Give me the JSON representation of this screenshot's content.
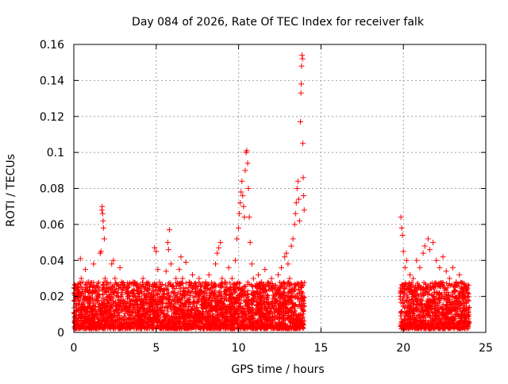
{
  "chart_data": {
    "type": "scatter",
    "title": "Day 084 of 2026, Rate Of TEC Index for receiver falk",
    "xlabel": "GPS time / hours",
    "ylabel": "ROTI / TECUs",
    "xlim": [
      0,
      25
    ],
    "ylim": [
      0,
      0.16
    ],
    "x_ticks": [
      0,
      5,
      10,
      15,
      20,
      25
    ],
    "x_tick_labels": [
      "0",
      "5",
      "10",
      "15",
      "20",
      "25"
    ],
    "y_ticks": [
      0,
      0.02,
      0.04,
      0.06,
      0.08,
      0.1,
      0.12,
      0.14,
      0.16
    ],
    "y_tick_labels": [
      "0",
      "0.02",
      "0.04",
      "0.06",
      "0.08",
      "0.1",
      "0.12",
      "0.14",
      "0.16"
    ],
    "grid": true,
    "marker": "+",
    "color": "#ff0000",
    "data_gap_hours": [
      14.0,
      19.8
    ],
    "points": [
      [
        0.05,
        0.008
      ],
      [
        0.1,
        0.015
      ],
      [
        0.15,
        0.012
      ],
      [
        0.2,
        0.025
      ],
      [
        0.25,
        0.018
      ],
      [
        0.3,
        0.01
      ],
      [
        0.35,
        0.022
      ],
      [
        0.4,
        0.041
      ],
      [
        0.45,
        0.03
      ],
      [
        0.5,
        0.014
      ],
      [
        0.6,
        0.02
      ],
      [
        0.7,
        0.035
      ],
      [
        0.8,
        0.012
      ],
      [
        0.9,
        0.028
      ],
      [
        1.0,
        0.016
      ],
      [
        1.1,
        0.022
      ],
      [
        1.2,
        0.038
      ],
      [
        1.3,
        0.018
      ],
      [
        1.4,
        0.026
      ],
      [
        1.5,
        0.014
      ],
      [
        1.6,
        0.044
      ],
      [
        1.65,
        0.045
      ],
      [
        1.7,
        0.068
      ],
      [
        1.72,
        0.07
      ],
      [
        1.75,
        0.066
      ],
      [
        1.78,
        0.062
      ],
      [
        1.8,
        0.058
      ],
      [
        1.85,
        0.052
      ],
      [
        1.9,
        0.03
      ],
      [
        2.0,
        0.018
      ],
      [
        2.1,
        0.024
      ],
      [
        2.2,
        0.02
      ],
      [
        2.3,
        0.038
      ],
      [
        2.4,
        0.04
      ],
      [
        2.5,
        0.03
      ],
      [
        2.6,
        0.015
      ],
      [
        2.7,
        0.022
      ],
      [
        2.8,
        0.036
      ],
      [
        2.9,
        0.028
      ],
      [
        3.0,
        0.018
      ],
      [
        3.2,
        0.025
      ],
      [
        3.4,
        0.02
      ],
      [
        3.6,
        0.028
      ],
      [
        3.8,
        0.018
      ],
      [
        4.0,
        0.022
      ],
      [
        4.2,
        0.03
      ],
      [
        4.4,
        0.02
      ],
      [
        4.6,
        0.026
      ],
      [
        4.8,
        0.018
      ],
      [
        4.9,
        0.047
      ],
      [
        5.0,
        0.045
      ],
      [
        5.1,
        0.035
      ],
      [
        5.2,
        0.028
      ],
      [
        5.4,
        0.02
      ],
      [
        5.6,
        0.034
      ],
      [
        5.7,
        0.05
      ],
      [
        5.75,
        0.046
      ],
      [
        5.8,
        0.057
      ],
      [
        5.9,
        0.038
      ],
      [
        6.0,
        0.026
      ],
      [
        6.2,
        0.03
      ],
      [
        6.4,
        0.035
      ],
      [
        6.5,
        0.042
      ],
      [
        6.6,
        0.03
      ],
      [
        6.8,
        0.039
      ],
      [
        7.0,
        0.028
      ],
      [
        7.2,
        0.032
      ],
      [
        7.4,
        0.024
      ],
      [
        7.6,
        0.03
      ],
      [
        7.8,
        0.022
      ],
      [
        8.0,
        0.028
      ],
      [
        8.2,
        0.032
      ],
      [
        8.4,
        0.025
      ],
      [
        8.6,
        0.038
      ],
      [
        8.7,
        0.044
      ],
      [
        8.8,
        0.047
      ],
      [
        8.9,
        0.05
      ],
      [
        9.0,
        0.03
      ],
      [
        9.2,
        0.028
      ],
      [
        9.4,
        0.036
      ],
      [
        9.6,
        0.03
      ],
      [
        9.8,
        0.04
      ],
      [
        9.9,
        0.052
      ],
      [
        10.0,
        0.058
      ],
      [
        10.05,
        0.066
      ],
      [
        10.1,
        0.072
      ],
      [
        10.15,
        0.078
      ],
      [
        10.2,
        0.084
      ],
      [
        10.25,
        0.076
      ],
      [
        10.3,
        0.07
      ],
      [
        10.35,
        0.064
      ],
      [
        10.4,
        0.09
      ],
      [
        10.45,
        0.1
      ],
      [
        10.5,
        0.101
      ],
      [
        10.55,
        0.094
      ],
      [
        10.6,
        0.08
      ],
      [
        10.65,
        0.064
      ],
      [
        10.7,
        0.05
      ],
      [
        10.8,
        0.038
      ],
      [
        10.9,
        0.03
      ],
      [
        11.0,
        0.026
      ],
      [
        11.2,
        0.032
      ],
      [
        11.4,
        0.028
      ],
      [
        11.6,
        0.035
      ],
      [
        11.8,
        0.026
      ],
      [
        12.0,
        0.03
      ],
      [
        12.2,
        0.024
      ],
      [
        12.4,
        0.032
      ],
      [
        12.6,
        0.036
      ],
      [
        12.8,
        0.042
      ],
      [
        12.9,
        0.044
      ],
      [
        13.0,
        0.038
      ],
      [
        13.1,
        0.03
      ],
      [
        13.2,
        0.048
      ],
      [
        13.3,
        0.052
      ],
      [
        13.4,
        0.06
      ],
      [
        13.45,
        0.066
      ],
      [
        13.5,
        0.072
      ],
      [
        13.55,
        0.08
      ],
      [
        13.6,
        0.084
      ],
      [
        13.65,
        0.074
      ],
      [
        13.7,
        0.062
      ],
      [
        13.75,
        0.117
      ],
      [
        13.78,
        0.133
      ],
      [
        13.8,
        0.138
      ],
      [
        13.82,
        0.148
      ],
      [
        13.85,
        0.154
      ],
      [
        13.88,
        0.152
      ],
      [
        13.9,
        0.105
      ],
      [
        13.92,
        0.086
      ],
      [
        13.95,
        0.076
      ],
      [
        13.98,
        0.068
      ],
      [
        19.85,
        0.064
      ],
      [
        19.9,
        0.058
      ],
      [
        19.95,
        0.054
      ],
      [
        20.0,
        0.045
      ],
      [
        20.1,
        0.036
      ],
      [
        20.2,
        0.04
      ],
      [
        20.4,
        0.032
      ],
      [
        20.6,
        0.03
      ],
      [
        20.8,
        0.04
      ],
      [
        21.0,
        0.036
      ],
      [
        21.2,
        0.044
      ],
      [
        21.3,
        0.048
      ],
      [
        21.5,
        0.052
      ],
      [
        21.6,
        0.046
      ],
      [
        21.8,
        0.05
      ],
      [
        22.0,
        0.04
      ],
      [
        22.2,
        0.036
      ],
      [
        22.4,
        0.042
      ],
      [
        22.6,
        0.034
      ],
      [
        22.8,
        0.03
      ],
      [
        23.0,
        0.036
      ],
      [
        23.2,
        0.028
      ],
      [
        23.4,
        0.032
      ],
      [
        23.6,
        0.024
      ],
      [
        23.8,
        0.026
      ],
      [
        23.9,
        0.018
      ],
      [
        24.0,
        0.014
      ]
    ]
  }
}
